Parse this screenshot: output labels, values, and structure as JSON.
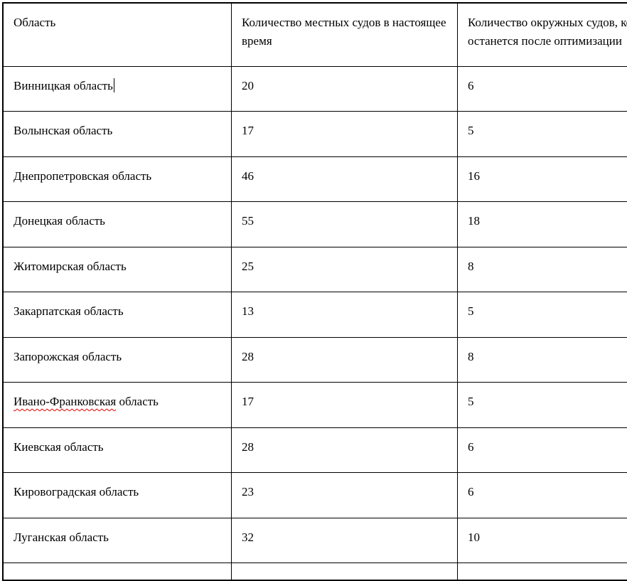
{
  "page": {
    "background_color": "#ffffff",
    "text_color": "#000000",
    "border_color": "#000000",
    "spellcheck_underline_color": "#e00000"
  },
  "table": {
    "headers": [
      {
        "label": "Область"
      },
      {
        "label": "Количество местных судов в настоящее время"
      },
      {
        "label": "Количество окружных судов, которое останется после оптимизации"
      }
    ],
    "rows": [
      {
        "region": "Винницкая область",
        "local_courts": "20",
        "district_courts": "6",
        "has_text_cursor": true
      },
      {
        "region": "Волынская область",
        "local_courts": "17",
        "district_courts": "5"
      },
      {
        "region": "Днепропетровская область",
        "local_courts": "46",
        "district_courts": "16"
      },
      {
        "region": "Донецкая область",
        "local_courts": "55",
        "district_courts": "18"
      },
      {
        "region": "Житомирская область",
        "local_courts": "25",
        "district_courts": "8"
      },
      {
        "region": "Закарпатская область",
        "local_courts": "13",
        "district_courts": "5"
      },
      {
        "region": "Запорожская область",
        "local_courts": "28",
        "district_courts": "8"
      },
      {
        "region": "Ивано-Франковская область",
        "local_courts": "17",
        "district_courts": "5",
        "misspelled_prefix": "Ивано-Франковская",
        "region_suffix": " область"
      },
      {
        "region": "Киевская область",
        "local_courts": "28",
        "district_courts": "6"
      },
      {
        "region": "Кировоградская область",
        "local_courts": "23",
        "district_courts": "6"
      },
      {
        "region": "Луганская область",
        "local_courts": "32",
        "district_courts": "10"
      }
    ]
  }
}
